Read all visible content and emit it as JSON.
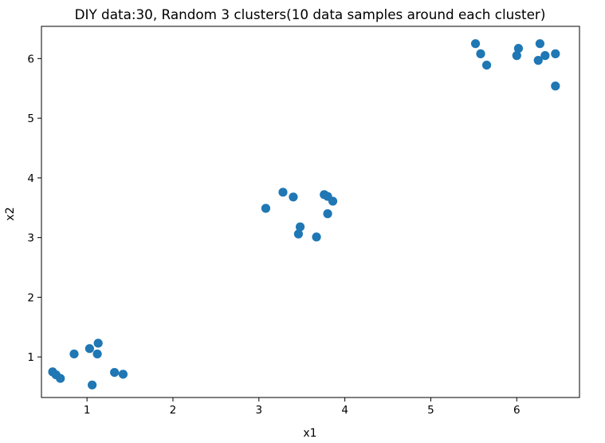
{
  "chart_data": {
    "type": "scatter",
    "title": "DIY data:30, Random 3 clusters(10 data samples around each cluster)",
    "xlabel": "x1",
    "ylabel": "x2",
    "xlim": [
      0.47,
      6.73
    ],
    "ylim": [
      0.32,
      6.54
    ],
    "xticks": [
      "1",
      "2",
      "3",
      "4",
      "5",
      "6"
    ],
    "yticks": [
      "1",
      "2",
      "3",
      "4",
      "5",
      "6"
    ],
    "grid": false,
    "legend": "none",
    "marker_color": "#1f77b4",
    "points": [
      {
        "x": 0.6,
        "y": 0.75
      },
      {
        "x": 0.64,
        "y": 0.7
      },
      {
        "x": 0.69,
        "y": 0.64
      },
      {
        "x": 0.85,
        "y": 1.05
      },
      {
        "x": 1.03,
        "y": 1.14
      },
      {
        "x": 1.06,
        "y": 0.53
      },
      {
        "x": 1.12,
        "y": 1.05
      },
      {
        "x": 1.13,
        "y": 1.23
      },
      {
        "x": 1.32,
        "y": 0.74
      },
      {
        "x": 1.42,
        "y": 0.71
      },
      {
        "x": 3.08,
        "y": 3.49
      },
      {
        "x": 3.28,
        "y": 3.76
      },
      {
        "x": 3.4,
        "y": 3.68
      },
      {
        "x": 3.46,
        "y": 3.06
      },
      {
        "x": 3.48,
        "y": 3.18
      },
      {
        "x": 3.67,
        "y": 3.01
      },
      {
        "x": 3.76,
        "y": 3.72
      },
      {
        "x": 3.8,
        "y": 3.69
      },
      {
        "x": 3.8,
        "y": 3.4
      },
      {
        "x": 3.86,
        "y": 3.61
      },
      {
        "x": 5.52,
        "y": 6.25
      },
      {
        "x": 5.58,
        "y": 6.08
      },
      {
        "x": 5.65,
        "y": 5.89
      },
      {
        "x": 6.0,
        "y": 6.05
      },
      {
        "x": 6.02,
        "y": 6.17
      },
      {
        "x": 6.25,
        "y": 5.97
      },
      {
        "x": 6.27,
        "y": 6.25
      },
      {
        "x": 6.33,
        "y": 6.05
      },
      {
        "x": 6.45,
        "y": 6.08
      },
      {
        "x": 6.45,
        "y": 5.54
      }
    ]
  }
}
